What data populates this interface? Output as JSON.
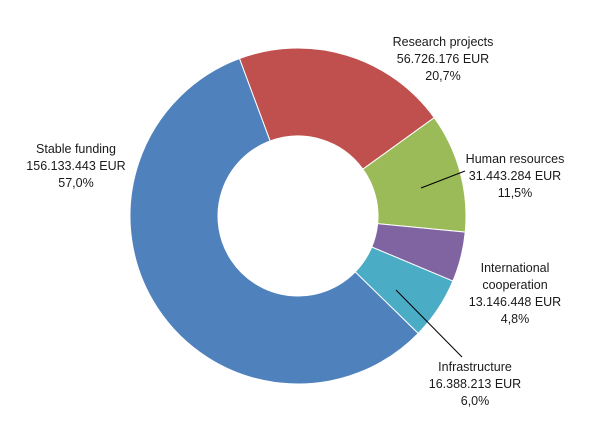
{
  "chart_data": {
    "type": "donut",
    "series": [
      {
        "name": "Research projects",
        "amount": "56.726.176 EUR",
        "value": 56726176,
        "percent_label": "20,7%",
        "color": "#c0504d"
      },
      {
        "name": "Human resources",
        "amount": "31.443.284 EUR",
        "value": 31443284,
        "percent_label": "11,5%",
        "color": "#9bbb59"
      },
      {
        "name": "International cooperation",
        "name_lines": [
          "International",
          "cooperation"
        ],
        "amount": "13.146.448 EUR",
        "value": 13146448,
        "percent_label": "4,8%",
        "color": "#8064a2"
      },
      {
        "name": "Infrastructure",
        "amount": "16.388.213 EUR",
        "value": 16388213,
        "percent_label": "6,0%",
        "color": "#4bacc6"
      },
      {
        "name": "Stable funding",
        "amount": "156.133.443 EUR",
        "value": 156133443,
        "percent_label": "57,0%",
        "color": "#4f81bd"
      }
    ]
  }
}
